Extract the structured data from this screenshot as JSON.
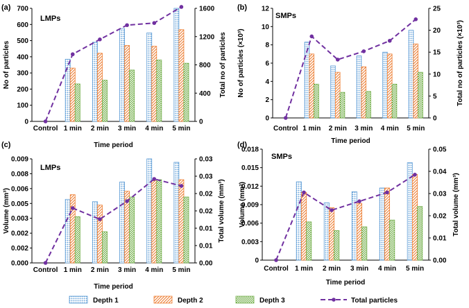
{
  "colors": {
    "depth1": "#5b9bd5",
    "depth2": "#ed7d31",
    "depth3": "#70ad47",
    "total": "#7030a0"
  },
  "legend": [
    "Depth 1",
    "Depth 2",
    "Depth 3",
    "Total particles"
  ],
  "chart_data": [
    {
      "type": "bar",
      "panel_label": "(a)",
      "title": "LMPs",
      "categories": [
        "Control",
        "1 min",
        "2 min",
        "3 min",
        "4 min",
        "5 min"
      ],
      "xlabel": "Time period",
      "ylabel": "No of particles",
      "y2label": "Total no of particles",
      "ylim": [
        0,
        700
      ],
      "yticks": [
        "0",
        "100",
        "200",
        "300",
        "400",
        "500",
        "600",
        "700"
      ],
      "y2lim": [
        0,
        1600
      ],
      "y2ticks": [
        "0",
        "400",
        "800",
        "1200",
        "1600"
      ],
      "series": [
        {
          "name": "Depth 1",
          "values": [
            0,
            385,
            490,
            575,
            548,
            700
          ]
        },
        {
          "name": "Depth 2",
          "values": [
            0,
            330,
            422,
            470,
            465,
            568
          ]
        },
        {
          "name": "Depth 3",
          "values": [
            0,
            232,
            255,
            318,
            380,
            360
          ]
        }
      ],
      "line": {
        "name": "Total particles",
        "values": [
          0,
          950,
          1160,
          1362,
          1392,
          1620
        ]
      }
    },
    {
      "type": "bar",
      "panel_label": "(b)",
      "title": "SMPs",
      "categories": [
        "Control",
        "1 min",
        "2 min",
        "3 min",
        "4 min",
        "5 min"
      ],
      "xlabel": "Time period",
      "ylabel": "No of particles (×10³)",
      "y2label": "Total no of particles (×10³)",
      "ylim": [
        0,
        12
      ],
      "yticks": [
        "0",
        "2",
        "4",
        "6",
        "8",
        "10",
        "12"
      ],
      "y2lim": [
        0,
        25
      ],
      "y2ticks": [
        "0",
        "5",
        "10",
        "15",
        "20",
        "25"
      ],
      "series": [
        {
          "name": "Depth 1",
          "values": [
            0,
            8.3,
            5.7,
            6.8,
            7.2,
            9.6
          ]
        },
        {
          "name": "Depth 2",
          "values": [
            0,
            7.0,
            5.0,
            5.6,
            7.0,
            8.1
          ]
        },
        {
          "name": "Depth 3",
          "values": [
            0,
            3.7,
            2.8,
            2.9,
            3.7,
            5.0
          ]
        }
      ],
      "line": {
        "name": "Total particles",
        "values": [
          0,
          18.6,
          13.3,
          15.2,
          17.6,
          22.5
        ]
      }
    },
    {
      "type": "bar",
      "panel_label": "(c)",
      "title": "LMPs",
      "categories": [
        "Control",
        "1 min",
        "2 min",
        "3 min",
        "4 min",
        "5 min"
      ],
      "xlabel": "Time period",
      "ylabel": "Volume (mm³)",
      "y2label": "Total volume (mm³)",
      "ylim": [
        0,
        0.009
      ],
      "yticks": [
        "0.000",
        "0.002",
        "0.002",
        "0.003",
        "0.005",
        "0.006",
        "0.008",
        "0.009"
      ],
      "y2lim": [
        0,
        0.03
      ],
      "y2ticks": [
        "0.00",
        "0.01",
        "0.01",
        "0.02",
        "0.02",
        "0.03",
        "0.03"
      ],
      "series": [
        {
          "name": "Depth 1",
          "values": [
            0,
            0.0055,
            0.0053,
            0.007,
            0.009,
            0.0087
          ]
        },
        {
          "name": "Depth 2",
          "values": [
            0,
            0.0059,
            0.005,
            0.0062,
            0.0071,
            0.0072
          ]
        },
        {
          "name": "Depth 3",
          "values": [
            0,
            0.004,
            0.0027,
            0.0057,
            0.0072,
            0.0057
          ]
        }
      ],
      "line": {
        "name": "Total particles",
        "values": [
          0,
          0.0158,
          0.0126,
          0.0178,
          0.0242,
          0.0222
        ]
      }
    },
    {
      "type": "bar",
      "panel_label": "(d)",
      "title": "SMPs",
      "categories": [
        "Control",
        "1 min",
        "2 min",
        "3 min",
        "4 min",
        "5 min"
      ],
      "xlabel": "Time period",
      "ylabel": "Volume (mm³)",
      "y2label": "Total volume (mm³)",
      "ylim": [
        0,
        0.018
      ],
      "yticks": [
        "0",
        "0.003",
        "0.006",
        "0.009",
        "0.012",
        "0.015",
        "0.018"
      ],
      "y2lim": [
        0,
        0.05
      ],
      "y2ticks": [
        "0.00",
        "0.01",
        "0.02",
        "0.03",
        "0.04",
        "0.05"
      ],
      "series": [
        {
          "name": "Depth 1",
          "values": [
            0,
            0.0127,
            0.0093,
            0.0111,
            0.0117,
            0.0158
          ]
        },
        {
          "name": "Depth 2",
          "values": [
            0,
            0.011,
            0.0085,
            0.0092,
            0.0117,
            0.0139
          ]
        },
        {
          "name": "Depth 3",
          "values": [
            0,
            0.0062,
            0.0048,
            0.0054,
            0.0065,
            0.0087
          ]
        }
      ],
      "line": {
        "name": "Total particles",
        "values": [
          0,
          0.0305,
          0.0225,
          0.0265,
          0.0305,
          0.0385
        ]
      }
    }
  ]
}
